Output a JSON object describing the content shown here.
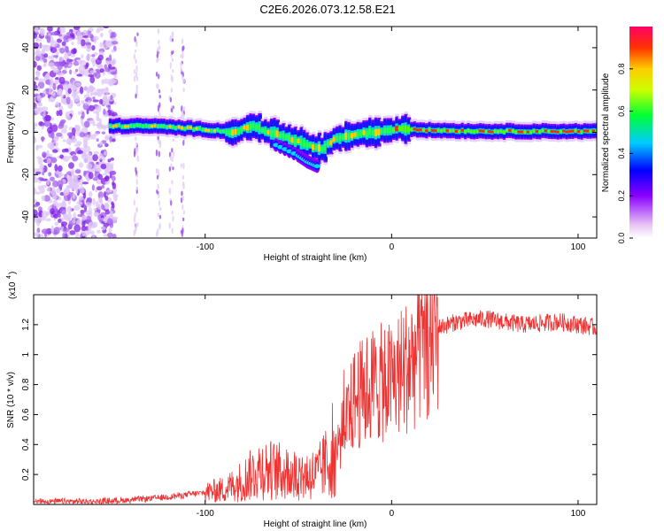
{
  "title": "C2E6.2026.073.12.58.E21",
  "chart_data": [
    {
      "type": "heatmap",
      "name": "spectrogram",
      "xlabel": "Height of straight line (km)",
      "ylabel": "Frequency (Hz)",
      "xlim": [
        -192,
        110
      ],
      "ylim": [
        -50,
        50
      ],
      "xticks": [
        -100,
        0,
        100
      ],
      "yticks": [
        -40,
        -20,
        0,
        20,
        40
      ],
      "ridge": [
        {
          "x": -150,
          "y": 3
        },
        {
          "x": -130,
          "y": 3
        },
        {
          "x": -110,
          "y": 2
        },
        {
          "x": -95,
          "y": 1
        },
        {
          "x": -85,
          "y": 0
        },
        {
          "x": -75,
          "y": 3
        },
        {
          "x": -65,
          "y": 0
        },
        {
          "x": -55,
          "y": -3
        },
        {
          "x": -45,
          "y": -6
        },
        {
          "x": -38,
          "y": -8
        },
        {
          "x": -30,
          "y": -3
        },
        {
          "x": -20,
          "y": -1
        },
        {
          "x": -10,
          "y": 0
        },
        {
          "x": 0,
          "y": 1
        },
        {
          "x": 6,
          "y": 2
        },
        {
          "x": 20,
          "y": 1
        },
        {
          "x": 50,
          "y": 0.5
        },
        {
          "x": 110,
          "y": 0.5
        }
      ],
      "branch": [
        {
          "x": -62,
          "y": -6
        },
        {
          "x": -50,
          "y": -11
        },
        {
          "x": -45,
          "y": -14
        },
        {
          "x": -40,
          "y": -16
        }
      ]
    },
    {
      "type": "line",
      "name": "snr",
      "xlabel": "Height of straight line (km)",
      "ylabel": "SNR (10 * v/v)",
      "multiplier_label": "(x10",
      "multiplier_exp": "4",
      "xlim": [
        -192,
        110
      ],
      "ylim": [
        0,
        1.4
      ],
      "xticks": [
        -100,
        0,
        100
      ],
      "yticks": [
        0.2,
        0.4,
        0.6,
        0.8,
        1.0,
        1.2
      ],
      "series_color": "#ee3333",
      "trend": [
        {
          "x": -192,
          "y": 0.02
        },
        {
          "x": -160,
          "y": 0.02
        },
        {
          "x": -140,
          "y": 0.03
        },
        {
          "x": -120,
          "y": 0.05
        },
        {
          "x": -100,
          "y": 0.08
        },
        {
          "x": -90,
          "y": 0.1
        },
        {
          "x": -80,
          "y": 0.16
        },
        {
          "x": -70,
          "y": 0.24
        },
        {
          "x": -60,
          "y": 0.22
        },
        {
          "x": -50,
          "y": 0.2
        },
        {
          "x": -40,
          "y": 0.2
        },
        {
          "x": -30,
          "y": 0.35
        },
        {
          "x": -20,
          "y": 0.7
        },
        {
          "x": -10,
          "y": 0.8
        },
        {
          "x": 0,
          "y": 0.82
        },
        {
          "x": 10,
          "y": 0.95
        },
        {
          "x": 20,
          "y": 1.1
        },
        {
          "x": 25,
          "y": 1.18
        },
        {
          "x": 35,
          "y": 1.22
        },
        {
          "x": 50,
          "y": 1.24
        },
        {
          "x": 70,
          "y": 1.2
        },
        {
          "x": 90,
          "y": 1.22
        },
        {
          "x": 110,
          "y": 1.18
        }
      ]
    }
  ],
  "colorbar": {
    "label": "Normalized spectral amplitude",
    "ticks": [
      0.0,
      0.2,
      0.4,
      0.6,
      0.8
    ],
    "tick_labels": [
      "0.0",
      "0.2",
      "0.4",
      "0.6",
      "0.8"
    ],
    "range": [
      0,
      1
    ]
  }
}
